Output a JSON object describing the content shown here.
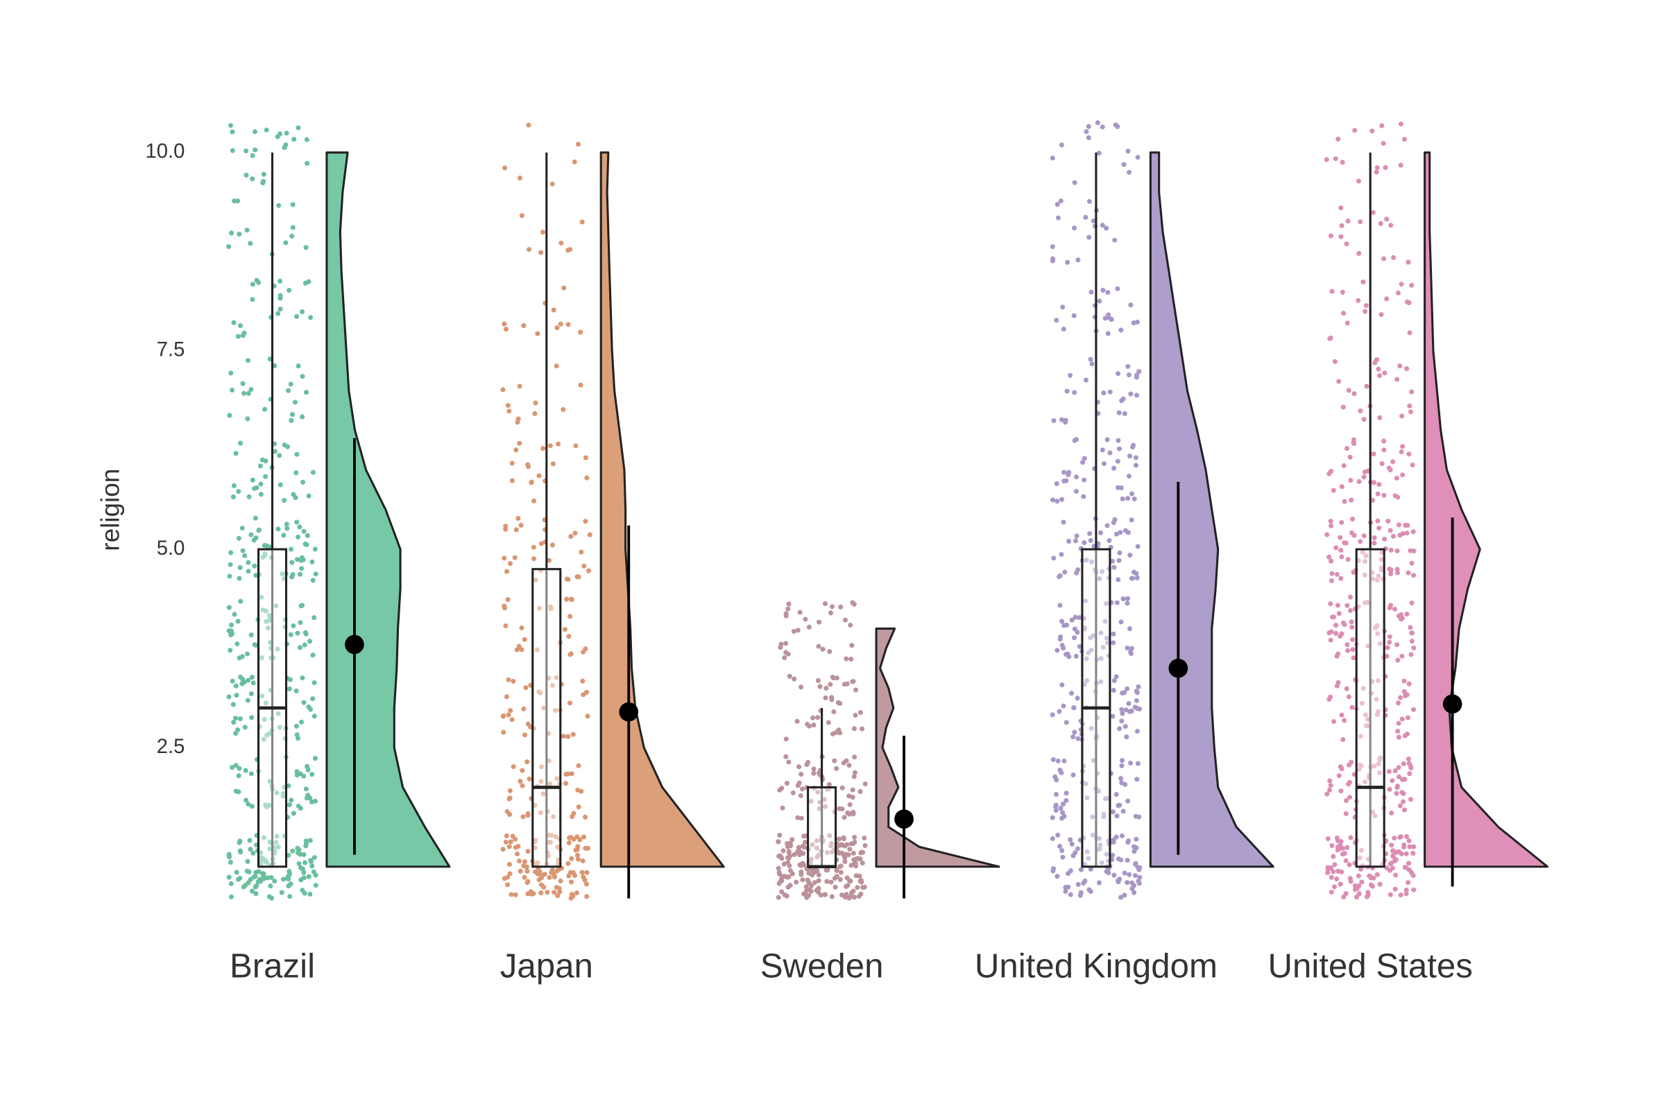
{
  "chart_data": {
    "type": "raincloud",
    "ylabel": "religion",
    "categories": [
      "Brazil",
      "Japan",
      "Sweden",
      "United Kingdom",
      "United States"
    ],
    "ylim": [
      0.6,
      10.4
    ],
    "yticks": [
      {
        "value": 10,
        "label": "10.0"
      },
      7.5,
      {
        "value": 5,
        "label": "5.0"
      },
      2.5
    ],
    "series": [
      {
        "color": "#4fb58c",
        "fill": "#76c8a6",
        "whisker_low": 1,
        "q1": 1,
        "median": 3,
        "q3": 5,
        "whisker_high": 10,
        "mean": 3.8,
        "mean_low": 1.15,
        "mean_high": 6.4,
        "density_y": [
          1,
          1.5,
          2,
          2.5,
          3,
          3.5,
          4,
          4.5,
          5,
          5.5,
          6,
          6.5,
          7,
          7.5,
          8,
          8.5,
          9,
          9.5,
          10
        ],
        "density": [
          1.0,
          0.8,
          0.62,
          0.55,
          0.55,
          0.57,
          0.58,
          0.6,
          0.6,
          0.48,
          0.32,
          0.23,
          0.18,
          0.16,
          0.14,
          0.12,
          0.11,
          0.13,
          0.17
        ],
        "levels": [
          1,
          2,
          3,
          4,
          5,
          6,
          7,
          8,
          9,
          10
        ],
        "point_counts": [
          110,
          45,
          50,
          50,
          55,
          30,
          22,
          22,
          14,
          22
        ]
      },
      {
        "color": "#d4845a",
        "fill": "#dba07a",
        "whisker_low": 1,
        "q1": 1,
        "median": 2,
        "q3": 4.75,
        "whisker_high": 10,
        "mean": 2.95,
        "mean_low": 0.6,
        "mean_high": 5.3,
        "density_y": [
          1,
          1.5,
          2,
          2.5,
          3,
          3.5,
          4,
          4.5,
          5,
          5.5,
          6,
          6.5,
          7,
          7.5,
          8,
          8.5,
          9,
          9.5,
          10
        ],
        "density": [
          1.0,
          0.75,
          0.5,
          0.35,
          0.28,
          0.25,
          0.24,
          0.22,
          0.2,
          0.2,
          0.19,
          0.15,
          0.11,
          0.09,
          0.08,
          0.07,
          0.06,
          0.05,
          0.06
        ],
        "levels": [
          1,
          2,
          3,
          4,
          5,
          6,
          7,
          8,
          9,
          10
        ],
        "point_counts": [
          110,
          38,
          34,
          24,
          30,
          18,
          11,
          11,
          8,
          6
        ]
      },
      {
        "color": "#b07f89",
        "fill": "#c19aa0",
        "whisker_low": 1,
        "q1": 1,
        "median": 1,
        "q3": 2,
        "whisker_high": 3,
        "mean": 1.6,
        "mean_low": 0.6,
        "mean_high": 2.65,
        "density_y": [
          1,
          1.25,
          1.5,
          1.75,
          2,
          2.25,
          2.5,
          2.75,
          3,
          3.25,
          3.5,
          3.75,
          4
        ],
        "density": [
          1.0,
          0.35,
          0.1,
          0.1,
          0.18,
          0.12,
          0.05,
          0.08,
          0.14,
          0.1,
          0.03,
          0.08,
          0.15
        ],
        "levels": [
          1,
          2,
          3,
          4
        ],
        "point_counts": [
          190,
          60,
          38,
          30
        ]
      },
      {
        "color": "#9a84be",
        "fill": "#ad9ecb",
        "whisker_low": 1,
        "q1": 1,
        "median": 3,
        "q3": 5,
        "whisker_high": 10,
        "mean": 3.5,
        "mean_low": 1.15,
        "mean_high": 5.85,
        "density_y": [
          1,
          1.5,
          2,
          2.5,
          3,
          3.5,
          4,
          4.5,
          5,
          5.5,
          6,
          6.5,
          7,
          7.5,
          8,
          8.5,
          9,
          9.5,
          10
        ],
        "density": [
          1.0,
          0.7,
          0.55,
          0.52,
          0.5,
          0.5,
          0.5,
          0.53,
          0.55,
          0.5,
          0.45,
          0.38,
          0.3,
          0.25,
          0.2,
          0.15,
          0.1,
          0.07,
          0.07
        ],
        "levels": [
          1,
          2,
          3,
          4,
          5,
          6,
          7,
          8,
          9,
          10
        ],
        "point_counts": [
          90,
          52,
          52,
          52,
          52,
          38,
          26,
          22,
          18,
          15
        ]
      },
      {
        "color": "#d67aa8",
        "fill": "#e090b8",
        "whisker_low": 1,
        "q1": 1,
        "median": 2,
        "q3": 5,
        "whisker_high": 10,
        "mean": 3.05,
        "mean_low": 0.75,
        "mean_high": 5.4,
        "density_y": [
          1,
          1.5,
          2,
          2.5,
          3,
          3.5,
          4,
          4.5,
          5,
          5.5,
          6,
          6.5,
          7,
          7.5,
          8,
          8.5,
          9,
          9.5,
          10
        ],
        "density": [
          1.0,
          0.6,
          0.3,
          0.22,
          0.2,
          0.25,
          0.28,
          0.35,
          0.45,
          0.3,
          0.18,
          0.13,
          0.1,
          0.07,
          0.06,
          0.05,
          0.04,
          0.04,
          0.04
        ],
        "levels": [
          1,
          2,
          3,
          4,
          5,
          6,
          7,
          8,
          9,
          10
        ],
        "point_counts": [
          110,
          60,
          45,
          60,
          68,
          38,
          22,
          18,
          15,
          15
        ]
      }
    ]
  }
}
